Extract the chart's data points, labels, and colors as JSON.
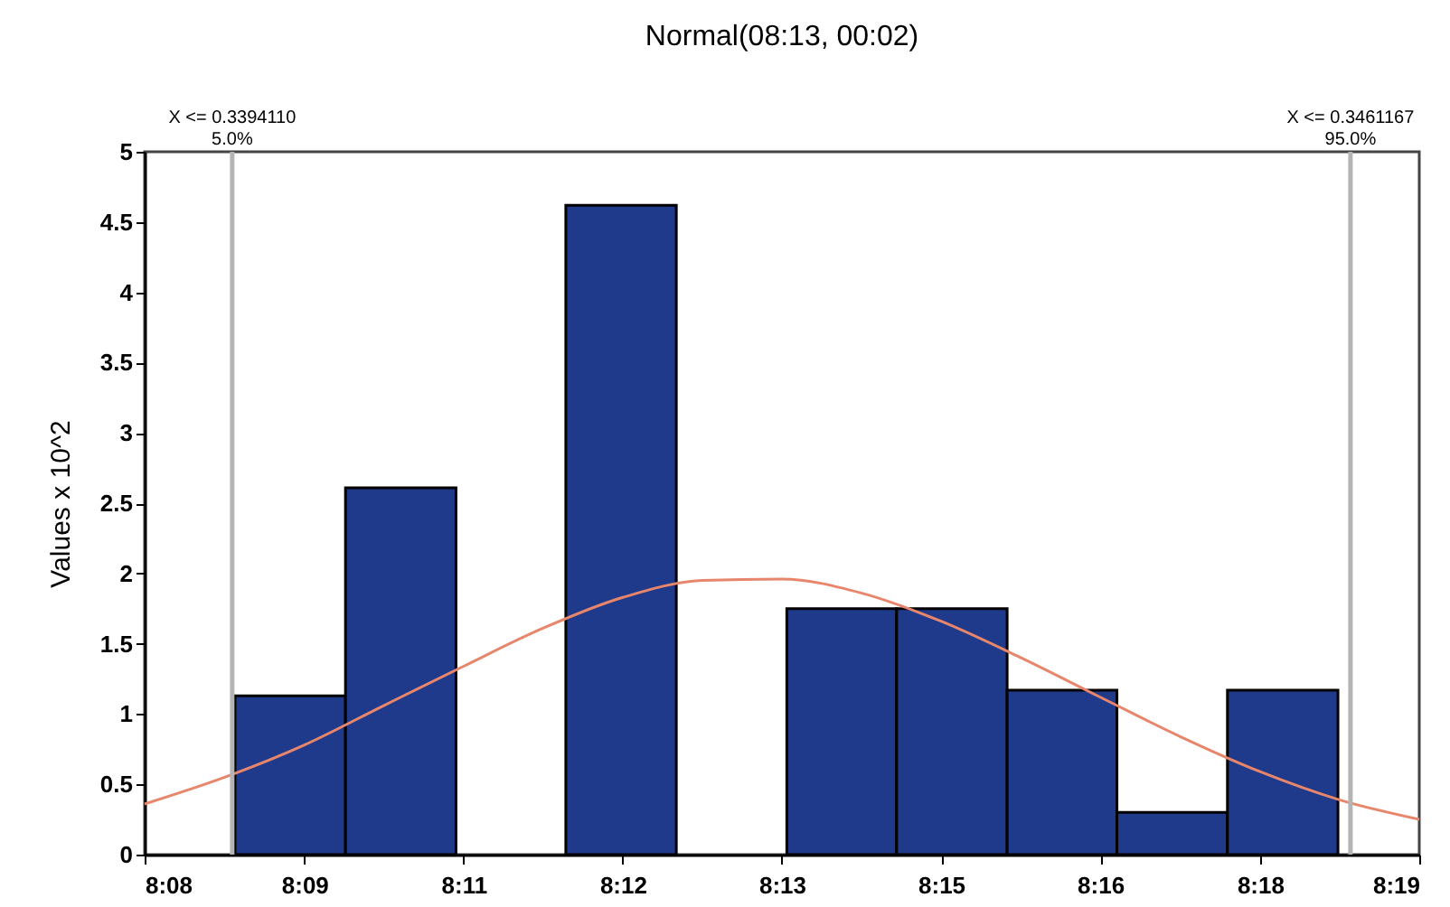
{
  "chart_data": {
    "type": "histogram",
    "title": "Normal(08:13, 00:02)",
    "ylabel": "Values x 10^2",
    "bins": [
      8.1463,
      8.1622,
      8.1781,
      8.1939,
      8.2098,
      8.2257,
      8.2415,
      8.2574,
      8.2732,
      8.2891,
      8.305
    ],
    "values": [
      1.13,
      2.61,
      0,
      4.62,
      0,
      1.75,
      1.75,
      1.17,
      0.3,
      1.17
    ],
    "color": "#1f3a8a",
    "series": [
      {
        "type": "line",
        "color": "#e8866c",
        "x": [
          8.1333,
          8.1448,
          8.1563,
          8.1677,
          8.1792,
          8.1906,
          8.2021,
          8.2135,
          8.225,
          8.2365,
          8.2479,
          8.2594,
          8.2708,
          8.2823,
          8.2938,
          8.3052,
          8.3167
        ],
        "values": [
          0.36,
          0.55,
          0.78,
          1.06,
          1.34,
          1.61,
          1.83,
          1.95,
          1.96,
          1.86,
          1.66,
          1.4,
          1.12,
          0.84,
          0.59,
          0.39,
          0.25
        ]
      }
    ],
    "ref_lines": [
      {
        "axis": "x",
        "value": 8.1459,
        "color": "#b4b4b4"
      },
      {
        "axis": "x",
        "value": 8.3068,
        "color": "#b4b4b4"
      }
    ],
    "annotations": [
      "X <= 0.3394110\n5.0%",
      "X <= 0.3461167\n95.0%"
    ],
    "xlim": [
      8.1333,
      8.3167
    ],
    "xticks": [
      {
        "value": 8.1333,
        "label": "8:08"
      },
      {
        "value": 8.1563,
        "label": "8:09"
      },
      {
        "value": 8.1792,
        "label": "8:11"
      },
      {
        "value": 8.2021,
        "label": "8:12"
      },
      {
        "value": 8.225,
        "label": "8:13"
      },
      {
        "value": 8.2479,
        "label": "8:15"
      },
      {
        "value": 8.2708,
        "label": "8:16"
      },
      {
        "value": 8.2938,
        "label": "8:18"
      },
      {
        "value": 8.3167,
        "label": "8:19"
      }
    ],
    "ylim": [
      0,
      5
    ],
    "yticks": [
      0,
      0.5,
      1,
      1.5,
      2,
      2.5,
      3,
      3.5,
      4,
      4.5,
      5
    ],
    "grid": false
  }
}
